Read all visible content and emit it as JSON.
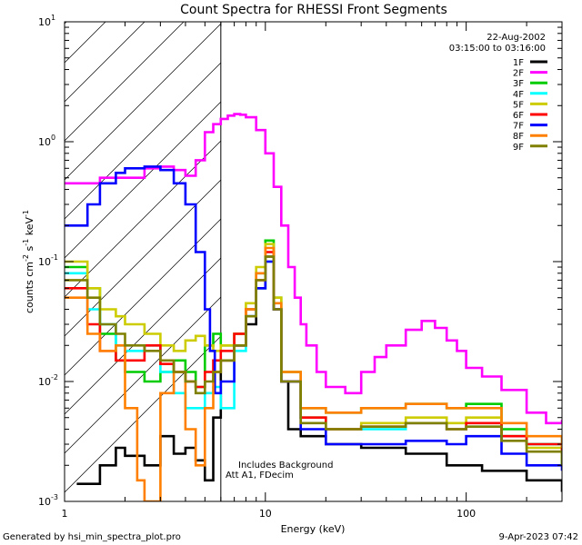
{
  "chart_data": {
    "type": "line",
    "title": "Count Spectra for RHESSI Front Segments",
    "xlabel": "Energy (keV)",
    "ylabel_parts": [
      "counts cm",
      "-2",
      " s",
      "-1",
      " keV",
      "-1"
    ],
    "xscale": "log",
    "yscale": "log",
    "xlim": [
      1,
      300
    ],
    "ylim": [
      0.001,
      10
    ],
    "x_major_ticks": [
      {
        "value": 1,
        "label": "1"
      },
      {
        "value": 10,
        "label": "10"
      },
      {
        "value": 100,
        "label": "100"
      }
    ],
    "y_major_ticks": [
      {
        "value": 0.001,
        "base": "10",
        "exp": "-3"
      },
      {
        "value": 0.01,
        "base": "10",
        "exp": "-2"
      },
      {
        "value": 0.1,
        "base": "10",
        "exp": "-1"
      },
      {
        "value": 1,
        "base": "10",
        "exp": "0"
      },
      {
        "value": 10,
        "base": "10",
        "exp": "1"
      }
    ],
    "hatched_region_x": [
      1,
      6
    ],
    "vertical_line_x": 6,
    "date": "22-Aug-2002",
    "time_range": "03:15:00 to 03:16:00",
    "annotations": [
      "Includes Background",
      "Att A1, FDecim"
    ],
    "series": [
      {
        "name": "1F",
        "color": "#000000",
        "points": [
          [
            1.15,
            0.0014
          ],
          [
            1.5,
            0.002
          ],
          [
            1.8,
            0.0028
          ],
          [
            2.0,
            0.0024
          ],
          [
            2.5,
            0.002
          ],
          [
            3.0,
            0.0035
          ],
          [
            3.5,
            0.0025
          ],
          [
            4.0,
            0.0028
          ],
          [
            4.5,
            0.0022
          ],
          [
            5.0,
            0.0015
          ],
          [
            5.5,
            0.005
          ],
          [
            6.0,
            0.015
          ],
          [
            7.0,
            0.02
          ],
          [
            8.0,
            0.03
          ],
          [
            9.0,
            0.06
          ],
          [
            10.0,
            0.11
          ],
          [
            11.0,
            0.04
          ],
          [
            12.0,
            0.01
          ],
          [
            13.0,
            0.004
          ],
          [
            15.0,
            0.0035
          ],
          [
            20.0,
            0.003
          ],
          [
            30.0,
            0.0028
          ],
          [
            50.0,
            0.0025
          ],
          [
            80.0,
            0.002
          ],
          [
            120.0,
            0.0018
          ],
          [
            200.0,
            0.0015
          ],
          [
            300.0,
            0.0012
          ]
        ]
      },
      {
        "name": "2F",
        "color": "#ff00ff",
        "points": [
          [
            1.0,
            0.45
          ],
          [
            1.5,
            0.5
          ],
          [
            2.0,
            0.5
          ],
          [
            2.5,
            0.6
          ],
          [
            3.0,
            0.62
          ],
          [
            3.5,
            0.58
          ],
          [
            4.0,
            0.52
          ],
          [
            4.5,
            0.7
          ],
          [
            5.0,
            1.2
          ],
          [
            5.5,
            1.4
          ],
          [
            6.0,
            1.55
          ],
          [
            6.5,
            1.65
          ],
          [
            7.0,
            1.7
          ],
          [
            7.5,
            1.68
          ],
          [
            8.0,
            1.6
          ],
          [
            9.0,
            1.25
          ],
          [
            10.0,
            0.8
          ],
          [
            11.0,
            0.42
          ],
          [
            12.0,
            0.2
          ],
          [
            13.0,
            0.09
          ],
          [
            14.0,
            0.05
          ],
          [
            15.0,
            0.03
          ],
          [
            16.0,
            0.02
          ],
          [
            18.0,
            0.012
          ],
          [
            20.0,
            0.009
          ],
          [
            25.0,
            0.008
          ],
          [
            30.0,
            0.012
          ],
          [
            35.0,
            0.016
          ],
          [
            40.0,
            0.02
          ],
          [
            50.0,
            0.027
          ],
          [
            60.0,
            0.032
          ],
          [
            70.0,
            0.028
          ],
          [
            80.0,
            0.022
          ],
          [
            90.0,
            0.018
          ],
          [
            100.0,
            0.013
          ],
          [
            120.0,
            0.011
          ],
          [
            150.0,
            0.0085
          ],
          [
            200.0,
            0.0055
          ],
          [
            250.0,
            0.0045
          ],
          [
            300.0,
            0.0048
          ]
        ]
      },
      {
        "name": "3F",
        "color": "#00cc00",
        "points": [
          [
            1.0,
            0.09
          ],
          [
            1.3,
            0.06
          ],
          [
            1.5,
            0.025
          ],
          [
            1.8,
            0.015
          ],
          [
            2.0,
            0.012
          ],
          [
            2.5,
            0.01
          ],
          [
            3.0,
            0.012
          ],
          [
            3.5,
            0.015
          ],
          [
            4.0,
            0.012
          ],
          [
            4.5,
            0.009
          ],
          [
            5.0,
            0.02
          ],
          [
            5.5,
            0.025
          ],
          [
            6.0,
            0.02
          ],
          [
            7.0,
            0.025
          ],
          [
            8.0,
            0.04
          ],
          [
            9.0,
            0.08
          ],
          [
            10.0,
            0.15
          ],
          [
            11.0,
            0.05
          ],
          [
            12.0,
            0.012
          ],
          [
            15.0,
            0.006
          ],
          [
            20.0,
            0.0055
          ],
          [
            30.0,
            0.006
          ],
          [
            50.0,
            0.0065
          ],
          [
            80.0,
            0.006
          ],
          [
            100.0,
            0.0065
          ],
          [
            150.0,
            0.004
          ],
          [
            200.0,
            0.003
          ],
          [
            300.0,
            0.002
          ]
        ]
      },
      {
        "name": "4F",
        "color": "#00ffff",
        "points": [
          [
            1.0,
            0.08
          ],
          [
            1.3,
            0.04
          ],
          [
            1.5,
            0.03
          ],
          [
            1.8,
            0.02
          ],
          [
            2.0,
            0.018
          ],
          [
            2.5,
            0.02
          ],
          [
            3.0,
            0.012
          ],
          [
            3.5,
            0.008
          ],
          [
            4.0,
            0.006
          ],
          [
            4.5,
            0.006
          ],
          [
            5.0,
            0.008
          ],
          [
            5.5,
            0.009
          ],
          [
            6.0,
            0.006
          ],
          [
            7.0,
            0.018
          ],
          [
            8.0,
            0.035
          ],
          [
            9.0,
            0.06
          ],
          [
            10.0,
            0.1
          ],
          [
            11.0,
            0.04
          ],
          [
            12.0,
            0.01
          ],
          [
            15.0,
            0.005
          ],
          [
            20.0,
            0.004
          ],
          [
            30.0,
            0.004
          ],
          [
            50.0,
            0.0045
          ],
          [
            80.0,
            0.004
          ],
          [
            100.0,
            0.0042
          ],
          [
            150.0,
            0.0035
          ],
          [
            200.0,
            0.003
          ],
          [
            300.0,
            0.0035
          ]
        ]
      },
      {
        "name": "5F",
        "color": "#cccc00",
        "points": [
          [
            1.0,
            0.1
          ],
          [
            1.3,
            0.06
          ],
          [
            1.5,
            0.04
          ],
          [
            1.8,
            0.035
          ],
          [
            2.0,
            0.03
          ],
          [
            2.5,
            0.025
          ],
          [
            3.0,
            0.02
          ],
          [
            3.5,
            0.018
          ],
          [
            4.0,
            0.022
          ],
          [
            4.5,
            0.024
          ],
          [
            5.0,
            0.02
          ],
          [
            5.5,
            0.018
          ],
          [
            6.0,
            0.02
          ],
          [
            7.0,
            0.025
          ],
          [
            8.0,
            0.045
          ],
          [
            9.0,
            0.09
          ],
          [
            10.0,
            0.14
          ],
          [
            11.0,
            0.05
          ],
          [
            12.0,
            0.012
          ],
          [
            15.0,
            0.005
          ],
          [
            20.0,
            0.004
          ],
          [
            30.0,
            0.0045
          ],
          [
            50.0,
            0.005
          ],
          [
            80.0,
            0.0045
          ],
          [
            100.0,
            0.005
          ],
          [
            150.0,
            0.0035
          ],
          [
            200.0,
            0.0028
          ],
          [
            300.0,
            0.0022
          ]
        ]
      },
      {
        "name": "6F",
        "color": "#ff0000",
        "points": [
          [
            1.0,
            0.06
          ],
          [
            1.3,
            0.03
          ],
          [
            1.5,
            0.018
          ],
          [
            1.8,
            0.015
          ],
          [
            2.0,
            0.015
          ],
          [
            2.5,
            0.02
          ],
          [
            3.0,
            0.014
          ],
          [
            3.5,
            0.012
          ],
          [
            4.0,
            0.01
          ],
          [
            4.5,
            0.009
          ],
          [
            5.0,
            0.012
          ],
          [
            5.5,
            0.015
          ],
          [
            6.0,
            0.018
          ],
          [
            7.0,
            0.025
          ],
          [
            8.0,
            0.04
          ],
          [
            9.0,
            0.07
          ],
          [
            10.0,
            0.12
          ],
          [
            11.0,
            0.04
          ],
          [
            12.0,
            0.01
          ],
          [
            15.0,
            0.005
          ],
          [
            20.0,
            0.004
          ],
          [
            30.0,
            0.0042
          ],
          [
            50.0,
            0.0045
          ],
          [
            80.0,
            0.004
          ],
          [
            100.0,
            0.0045
          ],
          [
            150.0,
            0.0035
          ],
          [
            200.0,
            0.003
          ],
          [
            300.0,
            0.0025
          ]
        ]
      },
      {
        "name": "7F",
        "color": "#0000ff",
        "points": [
          [
            1.0,
            0.2
          ],
          [
            1.3,
            0.3
          ],
          [
            1.5,
            0.45
          ],
          [
            1.8,
            0.55
          ],
          [
            2.0,
            0.6
          ],
          [
            2.5,
            0.62
          ],
          [
            3.0,
            0.58
          ],
          [
            3.5,
            0.45
          ],
          [
            4.0,
            0.3
          ],
          [
            4.5,
            0.12
          ],
          [
            5.0,
            0.04
          ],
          [
            5.3,
            0.018
          ],
          [
            5.6,
            0.008
          ],
          [
            6.0,
            0.01
          ],
          [
            7.0,
            0.02
          ],
          [
            8.0,
            0.035
          ],
          [
            9.0,
            0.06
          ],
          [
            10.0,
            0.1
          ],
          [
            11.0,
            0.04
          ],
          [
            12.0,
            0.01
          ],
          [
            15.0,
            0.004
          ],
          [
            20.0,
            0.003
          ],
          [
            30.0,
            0.003
          ],
          [
            50.0,
            0.0032
          ],
          [
            80.0,
            0.003
          ],
          [
            100.0,
            0.0035
          ],
          [
            150.0,
            0.0025
          ],
          [
            200.0,
            0.002
          ],
          [
            300.0,
            0.0018
          ]
        ]
      },
      {
        "name": "8F",
        "color": "#ff8000",
        "points": [
          [
            1.0,
            0.05
          ],
          [
            1.3,
            0.025
          ],
          [
            1.5,
            0.018
          ],
          [
            1.8,
            0.02
          ],
          [
            2.0,
            0.006
          ],
          [
            2.3,
            0.0015
          ],
          [
            2.5,
            0.001
          ],
          [
            3.0,
            0.008
          ],
          [
            3.5,
            0.012
          ],
          [
            4.0,
            0.004
          ],
          [
            4.5,
            0.002
          ],
          [
            5.0,
            0.006
          ],
          [
            5.5,
            0.012
          ],
          [
            6.0,
            0.015
          ],
          [
            7.0,
            0.02
          ],
          [
            8.0,
            0.04
          ],
          [
            9.0,
            0.08
          ],
          [
            10.0,
            0.13
          ],
          [
            11.0,
            0.045
          ],
          [
            12.0,
            0.012
          ],
          [
            15.0,
            0.006
          ],
          [
            20.0,
            0.0055
          ],
          [
            30.0,
            0.006
          ],
          [
            50.0,
            0.0065
          ],
          [
            80.0,
            0.006
          ],
          [
            100.0,
            0.006
          ],
          [
            150.0,
            0.0045
          ],
          [
            200.0,
            0.0035
          ],
          [
            300.0,
            0.0028
          ]
        ]
      },
      {
        "name": "9F",
        "color": "#808000",
        "points": [
          [
            1.0,
            0.07
          ],
          [
            1.3,
            0.05
          ],
          [
            1.5,
            0.03
          ],
          [
            1.8,
            0.025
          ],
          [
            2.0,
            0.02
          ],
          [
            2.5,
            0.018
          ],
          [
            3.0,
            0.015
          ],
          [
            3.5,
            0.012
          ],
          [
            4.0,
            0.01
          ],
          [
            4.5,
            0.008
          ],
          [
            5.0,
            0.01
          ],
          [
            5.5,
            0.012
          ],
          [
            6.0,
            0.015
          ],
          [
            7.0,
            0.02
          ],
          [
            8.0,
            0.035
          ],
          [
            9.0,
            0.07
          ],
          [
            10.0,
            0.11
          ],
          [
            11.0,
            0.04
          ],
          [
            12.0,
            0.01
          ],
          [
            15.0,
            0.0045
          ],
          [
            20.0,
            0.004
          ],
          [
            30.0,
            0.0042
          ],
          [
            50.0,
            0.0045
          ],
          [
            80.0,
            0.004
          ],
          [
            100.0,
            0.0042
          ],
          [
            150.0,
            0.0032
          ],
          [
            200.0,
            0.0026
          ],
          [
            300.0,
            0.002
          ]
        ]
      }
    ]
  },
  "footer": {
    "generated_by": "Generated by hsi_min_spectra_plot.pro",
    "timestamp": "9-Apr-2023 07:42"
  }
}
